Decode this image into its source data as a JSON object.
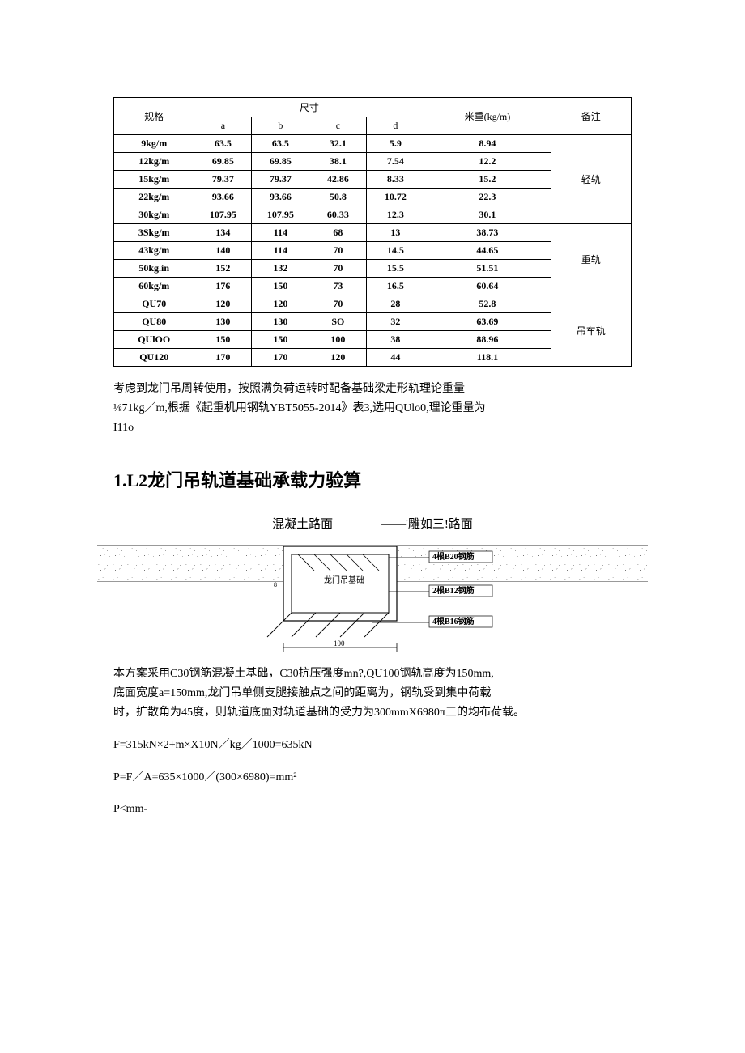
{
  "spec_table": {
    "headers": {
      "spec": "规格",
      "dim_group": "尺寸",
      "dim_a": "a",
      "dim_b": "b",
      "dim_c": "c",
      "dim_d": "d",
      "weight": "米重(kg/m)",
      "note": "备注"
    },
    "groups": [
      {
        "note": "轻轨",
        "rows": [
          {
            "spec": "9kg/m",
            "a": "63.5",
            "b": "63.5",
            "c": "32.1",
            "d": "5.9",
            "w": "8.94"
          },
          {
            "spec": "12kg/m",
            "a": "69.85",
            "b": "69.85",
            "c": "38.1",
            "d": "7.54",
            "w": "12.2"
          },
          {
            "spec": "15kg/m",
            "a": "79.37",
            "b": "79.37",
            "c": "42.86",
            "d": "8.33",
            "w": "15.2"
          },
          {
            "spec": "22kg/m",
            "a": "93.66",
            "b": "93.66",
            "c": "50.8",
            "d": "10.72",
            "w": "22.3"
          },
          {
            "spec": "30kg/m",
            "a": "107.95",
            "b": "107.95",
            "c": "60.33",
            "d": "12.3",
            "w": "30.1"
          }
        ]
      },
      {
        "note": "重轨",
        "rows": [
          {
            "spec": "3Skg/m",
            "a": "134",
            "b": "114",
            "c": "68",
            "d": "13",
            "w": "38.73"
          },
          {
            "spec": "43kg/m",
            "a": "140",
            "b": "114",
            "c": "70",
            "d": "14.5",
            "w": "44.65"
          },
          {
            "spec": "50kg.in",
            "a": "152",
            "b": "132",
            "c": "70",
            "d": "15.5",
            "w": "51.51"
          },
          {
            "spec": "60kg/m",
            "a": "176",
            "b": "150",
            "c": "73",
            "d": "16.5",
            "w": "60.64"
          }
        ]
      },
      {
        "note": "吊车轨",
        "rows": [
          {
            "spec": "QU70",
            "a": "120",
            "b": "120",
            "c": "70",
            "d": "28",
            "w": "52.8"
          },
          {
            "spec": "QU80",
            "a": "130",
            "b": "130",
            "c": "SO",
            "d": "32",
            "w": "63.69"
          },
          {
            "spec": "QUlOO",
            "a": "150",
            "b": "150",
            "c": "100",
            "d": "38",
            "w": "88.96"
          },
          {
            "spec": "QU120",
            "a": "170",
            "b": "170",
            "c": "120",
            "d": "44",
            "w": "118.1"
          }
        ]
      }
    ]
  },
  "paragraphs": {
    "p1_a": "考虑到龙门吊周转使用，按照满负荷运转时配备基础梁走形轨理论重量",
    "p1_b": "⅛71kg／m,根据《起重机用钢轨YBT5055-2014》表3,选用QUlo0,理论重量为",
    "p1_c": "I11o",
    "p2_a": "本方案采用C30钢筋混凝土基础，C30抗压强度mn?,QU100钢轨高度为150mm,",
    "p2_b": "底面宽度a=150mm,龙门吊单侧支腿接触点之间的距离为，钢轨受到集中荷载",
    "p2_c": "时，扩散角为45度，则轨道底面对轨道基础的受力为300mmX6980π三的均布荷载。",
    "eq1": "F=315kN×2+m×X10N／kg／1000=635kN",
    "eq2": "P=F／A=635×1000／(300×6980)=mm²",
    "eq3": "P<mm-"
  },
  "heading": "1.L2龙门吊轨道基础承载力验算",
  "diagram": {
    "label_left": "混凝土路面",
    "label_right": "——'雕如三!路面",
    "foundation_label": "龙门吊基础",
    "rebar_top": "4根B20钢筋",
    "rebar_mid": "2根B12钢筋",
    "rebar_bot": "4根B16钢筋",
    "dim_bottom": "100",
    "stroke_color": "#000000",
    "speckle_color": "#888888",
    "bg_color": "#ffffff"
  }
}
